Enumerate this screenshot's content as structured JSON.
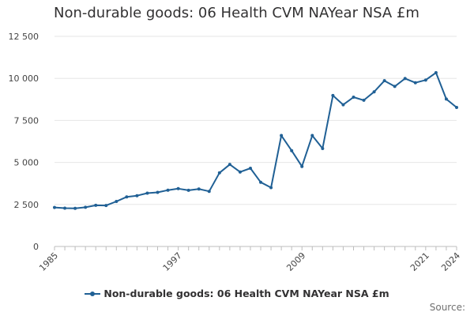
{
  "chart_data": {
    "type": "line",
    "title": "Non-durable goods: 06 Health CVM NAYear NSA £m",
    "xlabel": "",
    "ylabel": "",
    "x": [
      1985,
      1986,
      1987,
      1988,
      1989,
      1990,
      1991,
      1992,
      1993,
      1994,
      1995,
      1996,
      1997,
      1998,
      1999,
      2000,
      2001,
      2002,
      2003,
      2004,
      2005,
      2006,
      2007,
      2008,
      2009,
      2010,
      2011,
      2012,
      2013,
      2014,
      2015,
      2016,
      2017,
      2018,
      2019,
      2020,
      2021,
      2022,
      2023,
      2024
    ],
    "series": [
      {
        "name": "Non-durable goods: 06 Health CVM NAYear NSA £m",
        "color": "#206095",
        "values": [
          2320,
          2280,
          2270,
          2330,
          2450,
          2440,
          2680,
          2950,
          3020,
          3170,
          3220,
          3350,
          3440,
          3340,
          3420,
          3280,
          4380,
          4880,
          4430,
          4650,
          3820,
          3500,
          6600,
          5700,
          4760,
          6600,
          5830,
          8980,
          8430,
          8880,
          8700,
          9200,
          9860,
          9520,
          9990,
          9740,
          9900,
          10340,
          8770,
          8270
        ]
      }
    ],
    "ylim": [
      0,
      12500
    ],
    "yticks": [
      0,
      2500,
      5000,
      7500,
      10000,
      12500
    ],
    "ytick_labels": [
      "0",
      "2 500",
      "5 000",
      "7 500",
      "10 000",
      "12 500"
    ],
    "xticks": [
      1985,
      1997,
      2009,
      2021,
      2024
    ],
    "xtick_labels": [
      "1985",
      "1997",
      "2009",
      "2021",
      "2024"
    ],
    "grid": true,
    "legend": "bottom-center"
  },
  "source_label": "Source:"
}
